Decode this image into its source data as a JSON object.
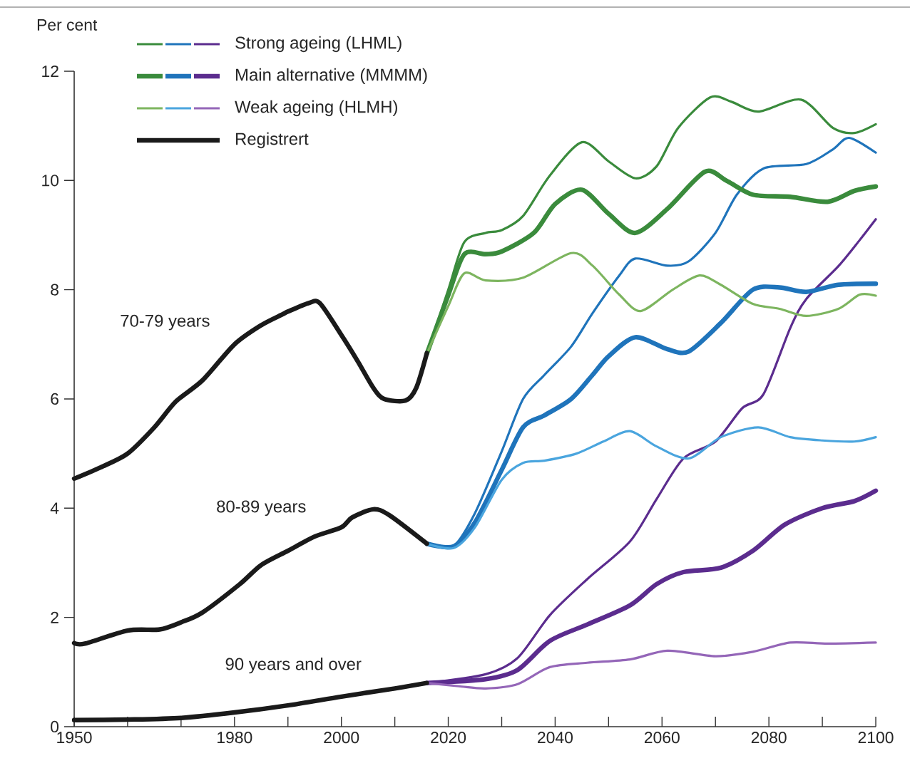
{
  "chart_data": {
    "type": "line",
    "ylabel": "Per cent",
    "legend": "top left",
    "grid": false,
    "line_style": "solid",
    "marker": "none",
    "xlim": [
      1950,
      2100
    ],
    "ylim": [
      0,
      12
    ],
    "xticks": [
      1950,
      {
        "value": 1960,
        "label": null
      },
      {
        "value": 1970,
        "label": null
      },
      1980,
      {
        "value": 1990,
        "label": null
      },
      2000,
      {
        "value": 2010,
        "label": null
      },
      2020,
      {
        "value": 2030,
        "label": null
      },
      2040,
      {
        "value": 2050,
        "label": null
      },
      2060,
      {
        "value": 2070,
        "label": null
      },
      2080,
      {
        "value": 2090,
        "label": null
      },
      2100
    ],
    "yticks": [
      0,
      2,
      4,
      6,
      8,
      10,
      12
    ],
    "annotations": [
      "70-79 years",
      "80-89 years",
      "90 years and over"
    ],
    "series": [
      {
        "color": "#3a8b3c",
        "x": [
          2016,
          2020,
          2023,
          2027,
          2030,
          2034,
          2039,
          2045,
          2050,
          2055,
          2059,
          2063,
          2069,
          2073,
          2078,
          2086,
          2092,
          2096,
          2100
        ],
        "values": [
          6.83,
          8.0,
          8.87,
          9.04,
          9.09,
          9.35,
          10.09,
          10.7,
          10.35,
          10.04,
          10.26,
          10.96,
          11.52,
          11.44,
          11.26,
          11.48,
          10.96,
          10.87,
          11.03
        ]
      },
      {
        "color": "#1f74bb",
        "x": [
          2016,
          2021,
          2025,
          2030,
          2034,
          2038,
          2043,
          2047,
          2052,
          2055,
          2061,
          2065,
          2070,
          2074,
          2079,
          2087,
          2092,
          2095,
          2100
        ],
        "values": [
          3.35,
          3.31,
          3.91,
          5.04,
          6.0,
          6.44,
          6.96,
          7.57,
          8.26,
          8.57,
          8.44,
          8.52,
          9.04,
          9.74,
          10.22,
          10.3,
          10.57,
          10.78,
          10.51
        ]
      },
      {
        "name": "Strong ageing (LHML)",
        "color": "#5b2c8e",
        "x": [
          2016,
          2027,
          2033,
          2039,
          2046,
          2054,
          2059,
          2064,
          2070,
          2075,
          2079,
          2084,
          2087,
          2093,
          2097,
          2100
        ],
        "values": [
          0.8,
          0.96,
          1.26,
          2.04,
          2.7,
          3.39,
          4.17,
          4.91,
          5.22,
          5.83,
          6.09,
          7.3,
          7.83,
          8.43,
          8.91,
          9.29
        ]
      },
      {
        "color": "#3a8b3c",
        "x": [
          2016,
          2020,
          2023,
          2027,
          2030,
          2036,
          2040,
          2045,
          2050,
          2055,
          2061,
          2068,
          2072,
          2077,
          2084,
          2091,
          2096,
          2100
        ],
        "values": [
          6.83,
          7.9,
          8.65,
          8.65,
          8.7,
          9.04,
          9.57,
          9.83,
          9.39,
          9.04,
          9.48,
          10.16,
          10.0,
          9.74,
          9.7,
          9.61,
          9.81,
          9.89
        ]
      },
      {
        "color": "#1f74bb",
        "x": [
          2016,
          2021,
          2025,
          2030,
          2034,
          2038,
          2043,
          2047,
          2050,
          2055,
          2061,
          2065,
          2071,
          2077,
          2082,
          2087,
          2093,
          2100
        ],
        "values": [
          3.35,
          3.3,
          3.74,
          4.7,
          5.48,
          5.7,
          6.0,
          6.44,
          6.78,
          7.13,
          6.91,
          6.87,
          7.39,
          8.0,
          8.04,
          7.96,
          8.09,
          8.11
        ]
      },
      {
        "name": "Main alternative (MMMM)",
        "color": "#5b2c8e",
        "x": [
          2016,
          2027,
          2033,
          2039,
          2046,
          2054,
          2059,
          2064,
          2071,
          2077,
          2083,
          2090,
          2096,
          2100
        ],
        "values": [
          0.8,
          0.87,
          1.04,
          1.57,
          1.87,
          2.22,
          2.61,
          2.83,
          2.91,
          3.22,
          3.7,
          4.0,
          4.13,
          4.32
        ]
      },
      {
        "color": "#7db55f",
        "x": [
          2016,
          2020,
          2023,
          2027,
          2034,
          2043,
          2047,
          2052,
          2056,
          2062,
          2067,
          2071,
          2077,
          2082,
          2087,
          2093,
          2097,
          2100
        ],
        "values": [
          6.83,
          7.7,
          8.3,
          8.17,
          8.22,
          8.67,
          8.44,
          7.91,
          7.61,
          8.0,
          8.26,
          8.09,
          7.74,
          7.65,
          7.52,
          7.65,
          7.91,
          7.89
        ]
      },
      {
        "color": "#4aa5de",
        "x": [
          2016,
          2021,
          2025,
          2030,
          2034,
          2038,
          2044,
          2049,
          2054,
          2059,
          2065,
          2071,
          2078,
          2084,
          2090,
          2096,
          2100
        ],
        "values": [
          3.35,
          3.27,
          3.65,
          4.52,
          4.83,
          4.87,
          5.0,
          5.22,
          5.41,
          5.13,
          4.91,
          5.3,
          5.48,
          5.3,
          5.24,
          5.22,
          5.3
        ]
      },
      {
        "name": "Weak ageing (HLMH)",
        "color": "#9466b8",
        "x": [
          2016,
          2022,
          2027,
          2033,
          2039,
          2046,
          2054,
          2061,
          2070,
          2077,
          2084,
          2091,
          2100
        ],
        "values": [
          0.8,
          0.74,
          0.7,
          0.78,
          1.09,
          1.17,
          1.23,
          1.39,
          1.29,
          1.37,
          1.54,
          1.52,
          1.54
        ]
      },
      {
        "color": "#1a1a1a",
        "x": [
          1950,
          1952,
          1960,
          1966,
          1970,
          1974,
          1981,
          1985,
          1990,
          1995,
          2000,
          2002,
          2006,
          2009,
          2016
        ],
        "values": [
          1.53,
          1.52,
          1.76,
          1.78,
          1.91,
          2.09,
          2.61,
          2.96,
          3.22,
          3.48,
          3.65,
          3.83,
          3.98,
          3.87,
          3.35
        ]
      },
      {
        "color": "#1a1a1a",
        "x": [
          1950,
          1960,
          1970,
          1980,
          1990,
          2000,
          2010,
          2016
        ],
        "values": [
          0.12,
          0.13,
          0.16,
          0.26,
          0.39,
          0.55,
          0.7,
          0.8
        ]
      },
      {
        "name": "Registrert",
        "color": "#1a1a1a",
        "x": [
          1950,
          1955,
          1960,
          1965,
          1969,
          1974,
          1980,
          1985,
          1989,
          1990,
          1994,
          1996,
          2000,
          2003,
          2006,
          2008,
          2012,
          2014,
          2016
        ],
        "values": [
          4.54,
          4.75,
          5.0,
          5.48,
          5.95,
          6.34,
          7.0,
          7.35,
          7.55,
          7.6,
          7.76,
          7.75,
          7.17,
          6.7,
          6.2,
          6.0,
          5.97,
          6.2,
          6.84
        ]
      }
    ]
  }
}
